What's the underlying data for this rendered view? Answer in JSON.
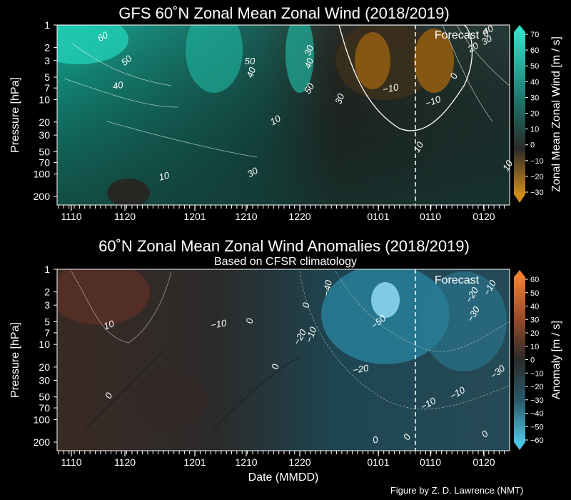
{
  "chart_data": [
    {
      "type": "contour",
      "title": "GFS 60˚N Zonal Mean Zonal Wind (2018/2019)",
      "subtitle": "",
      "xlabel": "",
      "ylabel": "Pressure [hPa]",
      "y_ticks": [
        "1",
        "2",
        "3",
        "5",
        "7",
        "10",
        "20",
        "30",
        "50",
        "70",
        "100",
        "200"
      ],
      "x_ticks": [
        "1110",
        "1120",
        "1201",
        "1210",
        "1220",
        "0101",
        "0110",
        "0120"
      ],
      "forecast_label": "Forecast",
      "colorbar_label": "Zonal Mean Zonal Wind [m / s]",
      "colorbar_ticks": [
        "70",
        "60",
        "50",
        "40",
        "30",
        "20",
        "10",
        "0",
        "−10",
        "−20",
        "−30"
      ],
      "contour_labels": [
        "60",
        "50",
        "40",
        "50",
        "40",
        "30",
        "40",
        "50",
        "30",
        "10",
        "30",
        "10",
        "10",
        "−10",
        "−10",
        "0",
        "20",
        "30",
        "40",
        "10",
        "0"
      ],
      "colors": {
        "positive": "#1fd0b8",
        "mid": "#1c3a36",
        "negative": "#c27a12"
      }
    },
    {
      "type": "contour",
      "title": "60˚N Zonal Mean Zonal Wind Anomalies (2018/2019)",
      "subtitle": "Based on CFSR climatology",
      "xlabel": "Date (MMDD)",
      "ylabel": "Pressure [hPa]",
      "y_ticks": [
        "1",
        "2",
        "3",
        "5",
        "7",
        "10",
        "20",
        "30",
        "50",
        "70",
        "100",
        "200"
      ],
      "x_ticks": [
        "1110",
        "1120",
        "1201",
        "1210",
        "1220",
        "0101",
        "0110",
        "0120"
      ],
      "forecast_label": "Forecast",
      "colorbar_label": "Anomaly [m / s]",
      "colorbar_ticks": [
        "60",
        "50",
        "40",
        "30",
        "20",
        "10",
        "0",
        "−10",
        "−20",
        "−30",
        "−40",
        "−50",
        "−60"
      ],
      "contour_labels": [
        "10",
        "0",
        "−10",
        "0",
        "0",
        "−40",
        "0",
        "−10",
        "−20",
        "−50",
        "−20",
        "−30",
        "−10",
        "−20",
        "−10",
        "−30",
        "−10",
        "0",
        "0",
        "0"
      ],
      "colors": {
        "positive": "#e85a1e",
        "mid": "#2a2a2a",
        "negative": "#3ab0d0"
      }
    }
  ],
  "footer": "Figure by Z. D. Lawrence (NMT)"
}
